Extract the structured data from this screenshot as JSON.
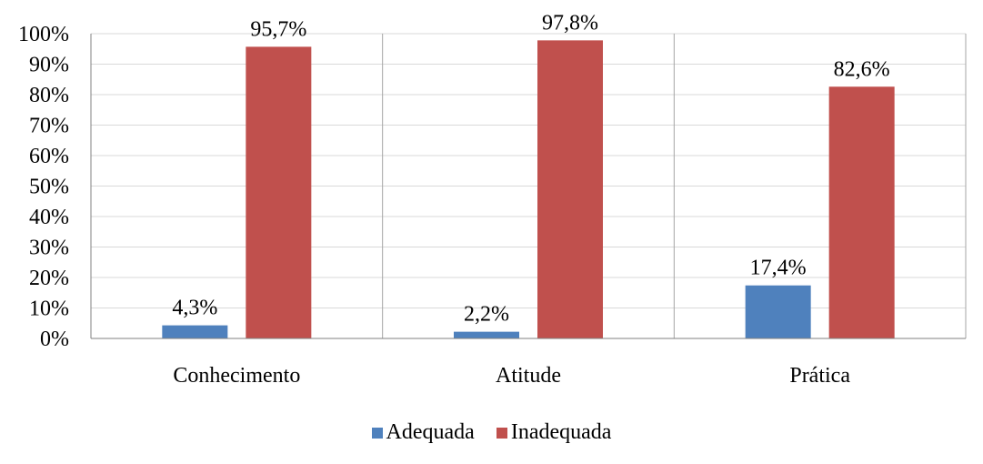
{
  "chart_data": {
    "type": "bar",
    "categories": [
      "Conhecimento",
      "Atitude",
      "Prática"
    ],
    "series": [
      {
        "name": "Adequada",
        "values": [
          4.3,
          2.2,
          17.4
        ],
        "labels": [
          "4,3%",
          "2,2%",
          "17,4%"
        ],
        "color": "#4F81BD"
      },
      {
        "name": "Inadequada",
        "values": [
          95.7,
          97.8,
          82.6
        ],
        "labels": [
          "95,7%",
          "97,8%",
          "82,6%"
        ],
        "color": "#C0504D"
      }
    ],
    "yticks": [
      "0%",
      "10%",
      "20%",
      "30%",
      "40%",
      "50%",
      "60%",
      "70%",
      "80%",
      "90%",
      "100%"
    ],
    "ylim": [
      0,
      100
    ],
    "grid": true,
    "legend_position": "bottom"
  }
}
